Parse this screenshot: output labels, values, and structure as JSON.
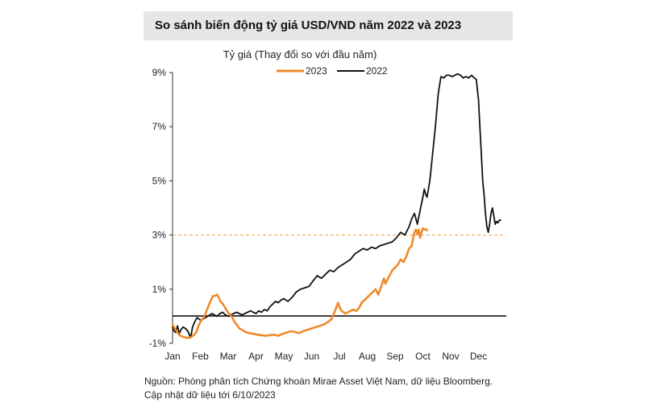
{
  "header": {
    "title": "So sánh biến động tỷ giá USD/VND năm 2022 và 2023"
  },
  "chart_data": {
    "type": "line",
    "ylabel": "Tỷ giá (Thay đổi so với đầu năm)",
    "xlim": [
      1,
      13
    ],
    "ylim": [
      -1,
      9
    ],
    "y_ticks": [
      {
        "value": 9,
        "label": "9%"
      },
      {
        "value": 7,
        "label": "7%"
      },
      {
        "value": 5,
        "label": "5%"
      },
      {
        "value": 3,
        "label": "3%"
      },
      {
        "value": 1,
        "label": "1%"
      },
      {
        "value": -1,
        "label": "-1%"
      }
    ],
    "x_ticks": [
      {
        "value": 1,
        "label": "Jan"
      },
      {
        "value": 2,
        "label": "Feb"
      },
      {
        "value": 3,
        "label": "Mar"
      },
      {
        "value": 4,
        "label": "Apr"
      },
      {
        "value": 5,
        "label": "May"
      },
      {
        "value": 6,
        "label": "Jun"
      },
      {
        "value": 7,
        "label": "Jul"
      },
      {
        "value": 8,
        "label": "Aug"
      },
      {
        "value": 9,
        "label": "Sep"
      },
      {
        "value": 10,
        "label": "Oct"
      },
      {
        "value": 11,
        "label": "Nov"
      },
      {
        "value": 12,
        "label": "Dec"
      }
    ],
    "legend_position": "top",
    "grid": false,
    "reference_line": {
      "y": 3.0,
      "x_start": 1,
      "x_end": 13,
      "color": "#f0a050",
      "style": "dashed"
    },
    "series": [
      {
        "name": "2023",
        "color": "#f08a2c",
        "x": [
          1.0,
          1.08,
          1.15,
          1.25,
          1.35,
          1.45,
          1.55,
          1.65,
          1.75,
          1.85,
          1.92,
          2.0,
          2.08,
          2.15,
          2.22,
          2.3,
          2.38,
          2.45,
          2.52,
          2.6,
          2.66,
          2.72,
          2.78,
          2.84,
          2.9,
          2.96,
          3.02,
          3.08,
          3.15,
          3.22,
          3.3,
          3.4,
          3.5,
          3.62,
          3.75,
          3.9,
          4.05,
          4.2,
          4.35,
          4.5,
          4.65,
          4.8,
          4.95,
          5.1,
          5.25,
          5.4,
          5.55,
          5.7,
          5.85,
          6.0,
          6.15,
          6.3,
          6.45,
          6.6,
          6.72,
          6.8,
          6.88,
          6.95,
          7.02,
          7.08,
          7.15,
          7.22,
          7.3,
          7.4,
          7.5,
          7.6,
          7.7,
          7.8,
          7.9,
          8.0,
          8.1,
          8.2,
          8.3,
          8.4,
          8.5,
          8.6,
          8.65,
          8.7,
          8.8,
          8.9,
          9.0,
          9.1,
          9.2,
          9.3,
          9.4,
          9.5,
          9.6,
          9.65,
          9.7,
          9.75,
          9.8,
          9.85,
          9.9,
          9.95,
          10.0,
          10.05,
          10.1,
          10.15
        ],
        "values": [
          -0.3,
          -0.45,
          -0.55,
          -0.7,
          -0.75,
          -0.78,
          -0.8,
          -0.78,
          -0.7,
          -0.6,
          -0.4,
          -0.2,
          -0.1,
          0.0,
          0.2,
          0.4,
          0.6,
          0.75,
          0.75,
          0.8,
          0.7,
          0.55,
          0.5,
          0.4,
          0.3,
          0.2,
          0.1,
          0.05,
          -0.05,
          -0.2,
          -0.3,
          -0.45,
          -0.5,
          -0.58,
          -0.62,
          -0.65,
          -0.68,
          -0.7,
          -0.72,
          -0.7,
          -0.68,
          -0.72,
          -0.65,
          -0.6,
          -0.55,
          -0.58,
          -0.62,
          -0.55,
          -0.5,
          -0.45,
          -0.4,
          -0.35,
          -0.3,
          -0.2,
          -0.1,
          0.1,
          0.3,
          0.5,
          0.3,
          0.2,
          0.15,
          0.1,
          0.15,
          0.2,
          0.25,
          0.2,
          0.3,
          0.5,
          0.6,
          0.7,
          0.8,
          0.9,
          1.0,
          0.8,
          1.1,
          1.4,
          1.2,
          1.3,
          1.5,
          1.7,
          1.8,
          1.9,
          2.1,
          2.0,
          2.2,
          2.5,
          2.6,
          2.9,
          3.1,
          3.2,
          3.05,
          3.2,
          2.9,
          3.1,
          3.25,
          3.2,
          3.22,
          3.18
        ]
      },
      {
        "name": "2022",
        "color": "#111111",
        "x": [
          1.0,
          1.06,
          1.12,
          1.18,
          1.24,
          1.3,
          1.38,
          1.46,
          1.55,
          1.65,
          1.72,
          1.8,
          1.88,
          1.95,
          2.02,
          2.1,
          2.18,
          2.26,
          2.34,
          2.42,
          2.5,
          2.6,
          2.7,
          2.8,
          2.9,
          3.0,
          3.1,
          3.2,
          3.3,
          3.4,
          3.5,
          3.6,
          3.7,
          3.8,
          3.9,
          4.0,
          4.1,
          4.2,
          4.3,
          4.4,
          4.5,
          4.6,
          4.7,
          4.8,
          4.9,
          5.0,
          5.15,
          5.3,
          5.45,
          5.6,
          5.75,
          5.9,
          6.05,
          6.2,
          6.35,
          6.5,
          6.65,
          6.8,
          6.95,
          7.1,
          7.25,
          7.4,
          7.55,
          7.7,
          7.85,
          8.0,
          8.15,
          8.3,
          8.45,
          8.6,
          8.75,
          8.9,
          9.05,
          9.2,
          9.35,
          9.5,
          9.6,
          9.7,
          9.8,
          9.9,
          10.0,
          10.05,
          10.1,
          10.15,
          10.25,
          10.35,
          10.45,
          10.55,
          10.65,
          10.75,
          10.85,
          10.95,
          11.05,
          11.15,
          11.25,
          11.35,
          11.45,
          11.55,
          11.65,
          11.75,
          11.85,
          11.92,
          12.0,
          12.05,
          12.1,
          12.15,
          12.2,
          12.25,
          12.3,
          12.35,
          12.4,
          12.45,
          12.5,
          12.55,
          12.6,
          12.65,
          12.7,
          12.75,
          12.8
        ],
        "values": [
          -0.4,
          -0.55,
          -0.6,
          -0.35,
          -0.65,
          -0.5,
          -0.4,
          -0.45,
          -0.55,
          -0.8,
          -0.4,
          -0.2,
          -0.05,
          -0.1,
          -0.15,
          -0.1,
          -0.05,
          0.0,
          0.05,
          0.1,
          0.05,
          0.0,
          0.1,
          0.15,
          0.05,
          0.0,
          0.05,
          0.1,
          0.15,
          0.1,
          0.05,
          0.1,
          0.15,
          0.2,
          0.15,
          0.1,
          0.2,
          0.15,
          0.25,
          0.2,
          0.35,
          0.45,
          0.55,
          0.5,
          0.6,
          0.65,
          0.55,
          0.7,
          0.9,
          1.0,
          1.05,
          1.1,
          1.3,
          1.5,
          1.4,
          1.55,
          1.7,
          1.65,
          1.8,
          1.9,
          2.0,
          2.1,
          2.3,
          2.4,
          2.5,
          2.45,
          2.55,
          2.5,
          2.6,
          2.65,
          2.7,
          2.75,
          2.9,
          3.1,
          3.0,
          3.3,
          3.6,
          3.8,
          3.4,
          3.9,
          4.4,
          4.7,
          4.5,
          4.4,
          5.0,
          6.0,
          7.0,
          8.2,
          8.85,
          8.8,
          8.9,
          8.9,
          8.85,
          8.9,
          8.95,
          8.9,
          8.8,
          8.85,
          8.8,
          8.9,
          8.8,
          8.75,
          8.0,
          7.0,
          6.0,
          5.0,
          4.5,
          3.8,
          3.3,
          3.1,
          3.4,
          3.8,
          4.0,
          3.7,
          3.4,
          3.5,
          3.45,
          3.55,
          3.55
        ]
      }
    ]
  },
  "footer": {
    "source": "Nguồn: Phòng phân tích Chứng khoán Mirae Asset Việt Nam, dữ liệu Bloomberg.",
    "updated": "Cập nhật dữ liệu tới 6/10/2023"
  }
}
